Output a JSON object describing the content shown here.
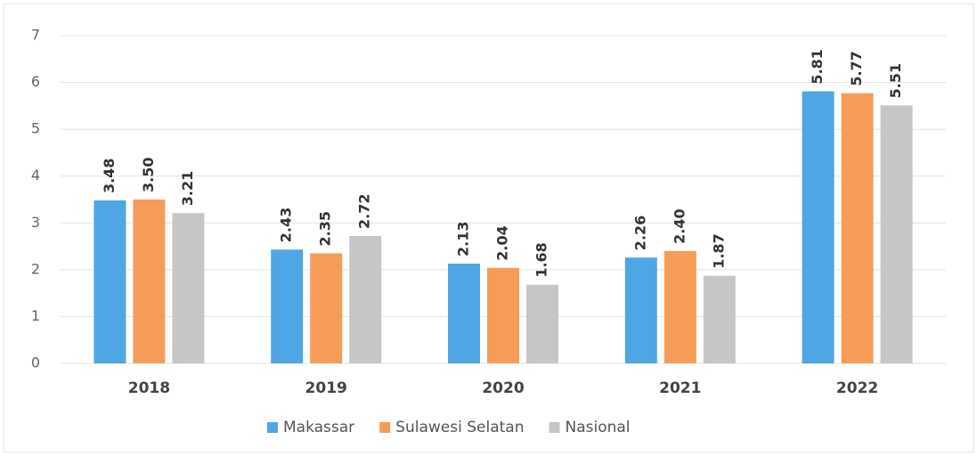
{
  "chart_data": {
    "type": "bar",
    "categories": [
      "2018",
      "2019",
      "2020",
      "2021",
      "2022"
    ],
    "series": [
      {
        "name": "Makassar",
        "color": "#4ea6e4",
        "values": [
          3.48,
          2.43,
          2.13,
          2.26,
          5.81
        ],
        "value_labels": [
          "3.48",
          "2.43",
          "2.13",
          "2.26",
          "5.81"
        ]
      },
      {
        "name": "Sulawesi Selatan",
        "color": "#f59d58",
        "values": [
          3.5,
          2.35,
          2.04,
          2.4,
          5.77
        ],
        "value_labels": [
          "3.50",
          "2.35",
          "2.04",
          "2.40",
          "5.77"
        ]
      },
      {
        "name": "Nasional",
        "color": "#c6c6c6",
        "values": [
          3.21,
          2.72,
          1.68,
          1.87,
          5.51
        ],
        "value_labels": [
          "3.21",
          "2.72",
          "1.68",
          "1.87",
          "5.51"
        ]
      }
    ],
    "ylim": [
      0,
      7
    ],
    "yticks": [
      0,
      1,
      2,
      3,
      4,
      5,
      6,
      7
    ],
    "grid": true,
    "legend": "bottom"
  }
}
